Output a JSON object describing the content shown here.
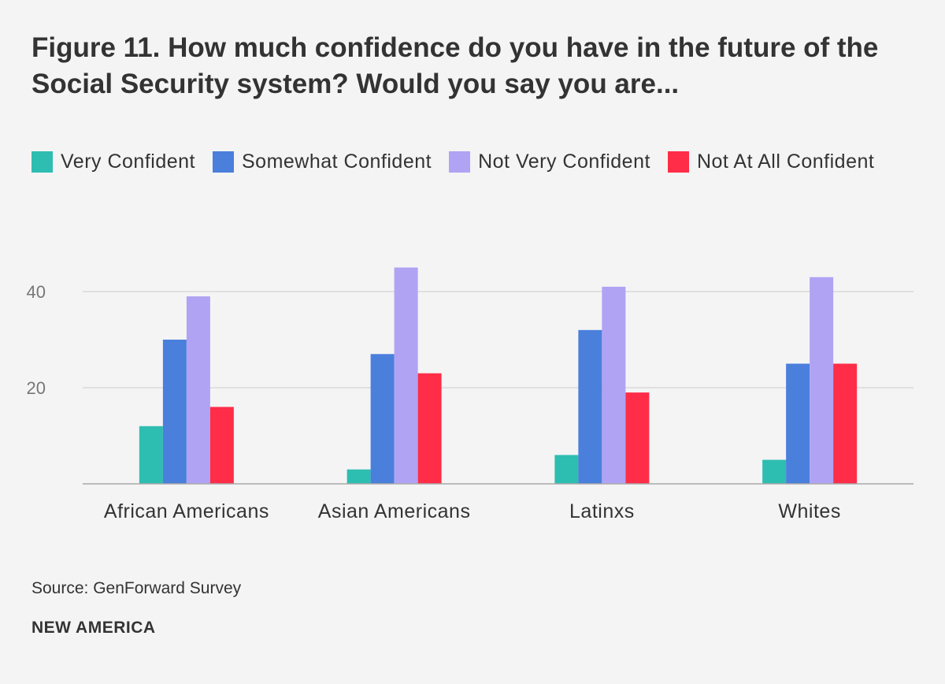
{
  "chart_data": {
    "type": "bar",
    "title": "Figure 11. How much confidence do you have in the future of the Social Security system? Would you say you are...",
    "categories": [
      "African Americans",
      "Asian Americans",
      "Latinxs",
      "Whites"
    ],
    "series": [
      {
        "name": "Very Confident",
        "color": "#2ebdb1",
        "values": [
          12,
          3,
          6,
          5
        ]
      },
      {
        "name": "Somewhat Confident",
        "color": "#4a7fdc",
        "values": [
          30,
          27,
          32,
          25
        ]
      },
      {
        "name": "Not Very Confident",
        "color": "#b0a3f4",
        "values": [
          39,
          45,
          41,
          43
        ]
      },
      {
        "name": "Not At All Confident",
        "color": "#ff2d48",
        "values": [
          16,
          23,
          19,
          25
        ]
      }
    ],
    "yticks": [
      20,
      40
    ],
    "ylim": [
      0,
      48
    ],
    "grid": true,
    "legend": "top-left",
    "source_label": "Source:",
    "source_value": "GenForward Survey",
    "brand": "NEW AMERICA"
  }
}
